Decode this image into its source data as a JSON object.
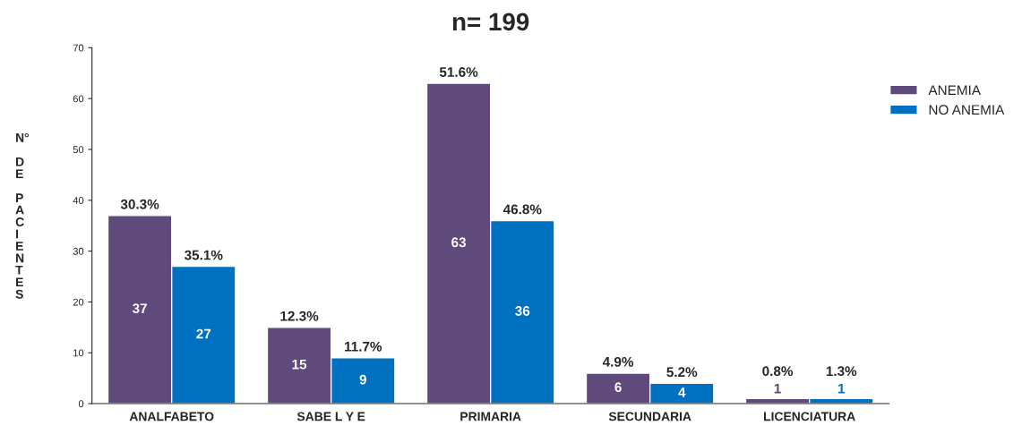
{
  "chart_data": {
    "type": "bar",
    "title": "n= 199",
    "ylabel": "N° DE PACIENTES",
    "categories": [
      "ANALFABETO",
      "SABE L Y E",
      "PRIMARIA",
      "SECUNDARIA",
      "LICENCIATURA"
    ],
    "series": [
      {
        "name": "ANEMIA",
        "color": "#5f4a7b",
        "values": [
          37,
          15,
          63,
          6,
          1
        ],
        "value_labels": [
          "37",
          "15",
          "63",
          "6",
          "1"
        ]
      },
      {
        "name": "NO ANEMIA",
        "color": "#0070c0",
        "values": [
          27,
          9,
          36,
          4,
          1
        ],
        "value_labels": [
          "27",
          "9",
          "36",
          "4",
          "1"
        ]
      }
    ],
    "annotations": [
      {
        "text": "30.3%",
        "x": "ANALFABETO",
        "y": 37
      },
      {
        "text": "12.3%",
        "x": "SABE L Y E",
        "y": 15
      },
      {
        "text": "51.6%",
        "x": "PRIMARIA",
        "y": 63
      },
      {
        "text": "4.9%",
        "x": "SECUNDARIA",
        "y": 6
      },
      {
        "text": "0.8%",
        "x": "LICENCIATURA",
        "y": 1
      },
      {
        "text": "35.1%",
        "x": "ANALFABETO",
        "y": 27
      },
      {
        "text": "11.7%",
        "x": "SABE L Y E",
        "y": 9
      },
      {
        "text": "46.8%",
        "x": "PRIMARIA",
        "y": 36
      },
      {
        "text": "5.2%",
        "x": "SECUNDARIA",
        "y": 4
      },
      {
        "text": "1.3%",
        "x": "LICENCIATURA",
        "y": 1
      }
    ],
    "ylim": [
      0,
      70
    ],
    "yticks": [
      0,
      10,
      20,
      30,
      40,
      50,
      60,
      70
    ],
    "legend": "top right"
  }
}
